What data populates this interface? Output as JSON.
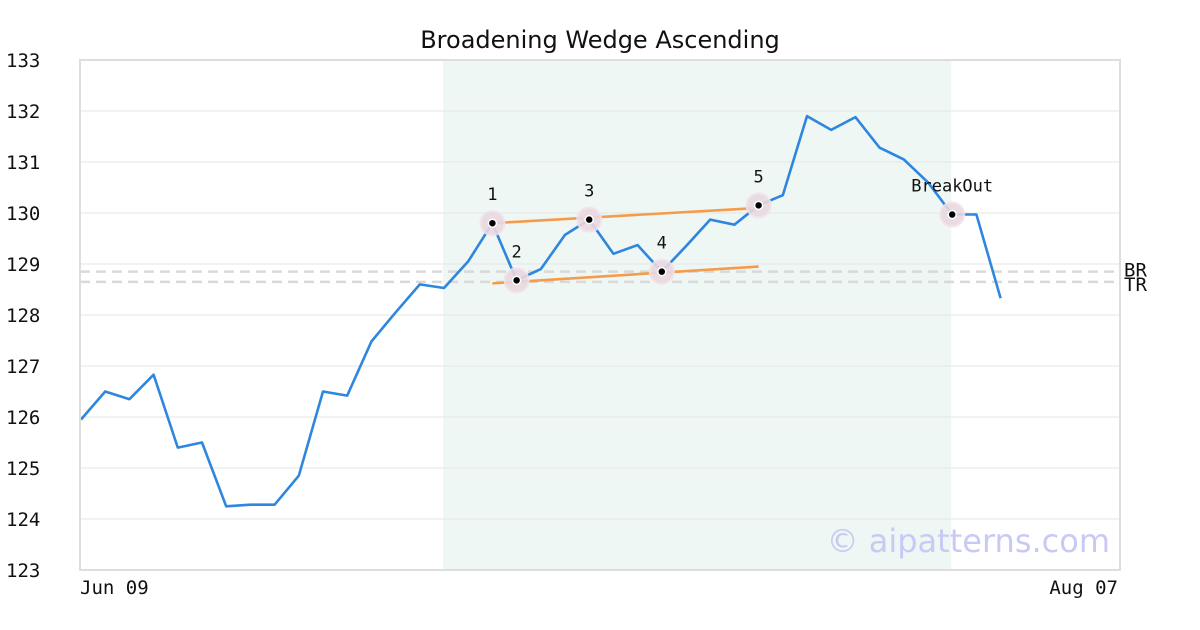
{
  "chart_data": {
    "type": "line",
    "title": "Broadening Wedge Ascending",
    "xlabel": "",
    "ylabel": "",
    "ylim": [
      123,
      133
    ],
    "yticks": [
      123,
      124,
      125,
      126,
      127,
      128,
      129,
      130,
      131,
      132,
      133
    ],
    "x_tick_labels": [
      "Jun 09",
      "Aug 07"
    ],
    "grid": true,
    "line_color": "#2e86de",
    "trendline_color": "#f59b4c",
    "highlight_color": "#eef7f3",
    "series": [
      {
        "values": [
          125.95,
          126.5,
          126.35,
          126.83,
          125.4,
          125.5,
          124.25,
          124.28,
          124.28,
          124.85,
          126.5,
          126.42,
          127.48,
          128.05,
          128.6,
          128.53,
          129.05,
          129.8,
          128.68,
          128.9,
          129.57,
          129.87,
          129.2,
          129.37,
          128.85,
          129.35,
          129.87,
          129.77,
          130.15,
          130.35,
          131.9,
          131.63,
          131.88,
          131.28,
          131.05,
          130.6,
          129.97,
          129.97,
          128.33
        ]
      }
    ],
    "highlight_range": [
      15,
      36
    ],
    "pattern_points": [
      {
        "label": "1",
        "index": 17,
        "value": 129.8
      },
      {
        "label": "2",
        "index": 18,
        "value": 128.68
      },
      {
        "label": "3",
        "index": 21,
        "value": 129.87
      },
      {
        "label": "4",
        "index": 24,
        "value": 128.85
      },
      {
        "label": "5",
        "index": 28,
        "value": 130.15
      },
      {
        "label": "BreakOut",
        "index": 36,
        "value": 129.97
      }
    ],
    "trendlines": [
      {
        "from": [
          17,
          129.8
        ],
        "to": [
          28,
          130.1
        ]
      },
      {
        "from": [
          17,
          128.62
        ],
        "to": [
          28,
          128.95
        ]
      }
    ],
    "reference_lines": [
      {
        "label": "BR",
        "value": 128.85
      },
      {
        "label": "TR",
        "value": 128.65
      }
    ],
    "watermark": "© aipatterns.com"
  }
}
